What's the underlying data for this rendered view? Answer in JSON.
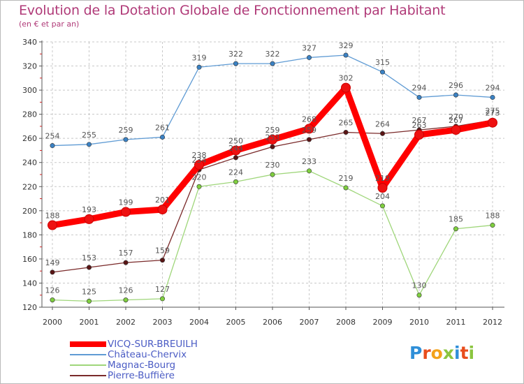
{
  "chart_data": {
    "type": "line",
    "title": "Evolution de la Dotation Globale de Fonctionnement par Habitant",
    "subtitle": "(en € et par an)",
    "xlabel": "",
    "ylabel": "",
    "ylim": [
      120,
      340
    ],
    "yticks": [
      120,
      140,
      160,
      180,
      200,
      220,
      240,
      260,
      280,
      300,
      320,
      340
    ],
    "categories": [
      "2000",
      "2001",
      "2002",
      "2003",
      "2004",
      "2005",
      "2006",
      "2007",
      "2008",
      "2009",
      "2010",
      "2011",
      "2012"
    ],
    "grid": true,
    "series": [
      {
        "name": "VICQ-SUR-BREUILH",
        "color": "#ff0000",
        "marker": "#ee1111",
        "values": [
          188,
          193,
          199,
          201,
          238,
          250,
          259,
          268,
          302,
          219,
          263,
          267,
          273
        ]
      },
      {
        "name": "Château-Chervix",
        "color": "#5f9bd4",
        "marker": "#3b82c4",
        "values": [
          254,
          255,
          259,
          261,
          319,
          322,
          322,
          327,
          329,
          315,
          294,
          296,
          294
        ]
      },
      {
        "name": "Magnac-Bourg",
        "color": "#9fd67a",
        "marker": "#7fcf3f",
        "values": [
          126,
          125,
          126,
          127,
          220,
          224,
          230,
          233,
          219,
          204,
          130,
          185,
          188
        ]
      },
      {
        "name": "Pierre-Buffière",
        "color": "#7a2a2a",
        "marker": "#5a1515",
        "values": [
          149,
          153,
          157,
          159,
          234,
          244,
          253,
          259,
          265,
          264,
          267,
          270,
          275
        ]
      }
    ]
  },
  "logo": {
    "letters": [
      "P",
      "r",
      "o",
      "x",
      "i",
      "t",
      "i"
    ],
    "colors": [
      "#2f8fd8",
      "#e84d1c",
      "#f3a21b",
      "#8bc53f",
      "#2f8fd8",
      "#e84d1c",
      "#8bc53f"
    ]
  }
}
